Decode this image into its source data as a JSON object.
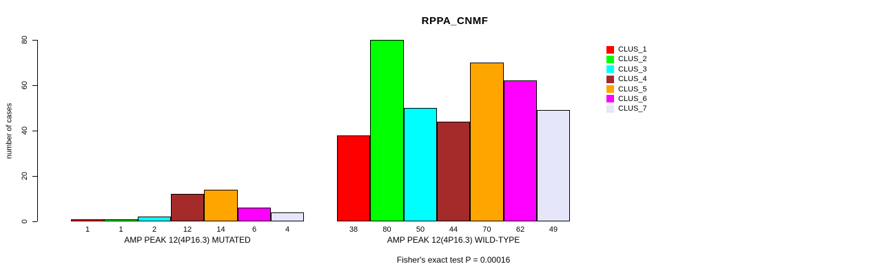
{
  "title": "RPPA_CNMF",
  "footer": "Fisher's exact test P = 0.00016",
  "chart_data": {
    "type": "bar",
    "title": "RPPA_CNMF",
    "xlabel": "",
    "ylabel": "number of cases",
    "ylim": [
      0,
      80
    ],
    "yticks": [
      0,
      20,
      40,
      60,
      80
    ],
    "grid": false,
    "annotation": "Fisher's exact test P = 0.00016",
    "legend_position": "right",
    "series_colors": [
      "#FF0000",
      "#00FF00",
      "#00FFFF",
      "#A52A2A",
      "#FFA500",
      "#FF00FF",
      "#E6E6FA"
    ],
    "legend_entries": [
      {
        "label": "CLUS_1",
        "color": "#FF0000"
      },
      {
        "label": "CLUS_2",
        "color": "#00FF00"
      },
      {
        "label": "CLUS_3",
        "color": "#00FFFF"
      },
      {
        "label": "CLUS_4",
        "color": "#A52A2A"
      },
      {
        "label": "CLUS_5",
        "color": "#FFA500"
      },
      {
        "label": "CLUS_6",
        "color": "#FF00FF"
      },
      {
        "label": "CLUS_7",
        "color": "#E6E6FA"
      }
    ],
    "groups": [
      {
        "label": "AMP PEAK 12(4P16.3) MUTATED",
        "values": [
          1,
          1,
          2,
          12,
          14,
          6,
          4
        ]
      },
      {
        "label": "AMP PEAK 12(4P16.3) WILD-TYPE",
        "values": [
          38,
          80,
          50,
          44,
          70,
          62,
          49
        ]
      }
    ]
  }
}
